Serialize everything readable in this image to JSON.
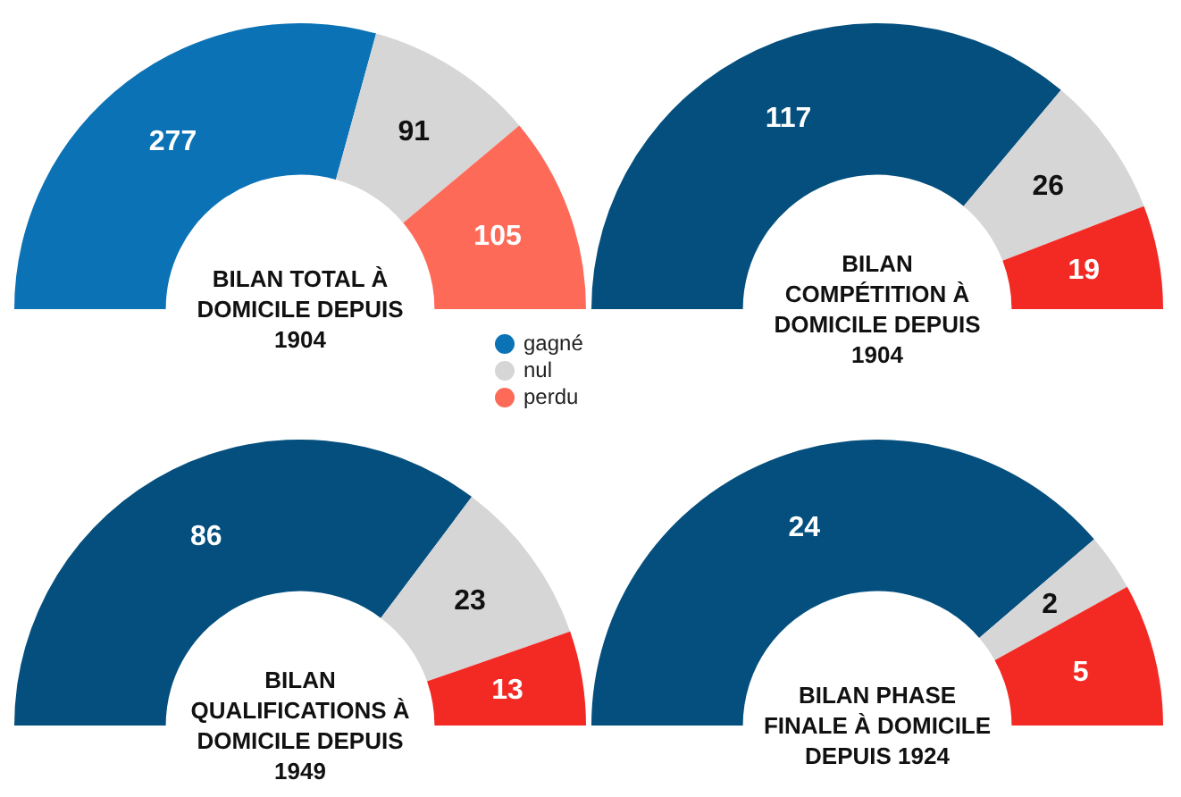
{
  "chart_data": [
    {
      "type": "donut",
      "title": "BILAN TOTAL À DOMICILE DEPUIS 1904",
      "categories": [
        "gagné",
        "nul",
        "perdu"
      ],
      "values": [
        277,
        91,
        105
      ],
      "colors": [
        "#0b72b5",
        "#d6d6d6",
        "#fe6a58"
      ],
      "data_labels": true,
      "legend": "bottom right"
    },
    {
      "type": "donut",
      "title": "BILAN COMPÉTITION À DOMICILE DEPUIS 1904",
      "categories": [
        null,
        null,
        null
      ],
      "values": [
        117,
        26,
        19
      ],
      "colors": [
        "#044f7e",
        "#d6d6d6",
        "#f32a24"
      ],
      "data_labels": true
    },
    {
      "type": "donut",
      "title": "BILAN QUALIFICATIONS À DOMICILE DEPUIS 1949",
      "categories": [
        null,
        null,
        null
      ],
      "values": [
        86,
        23,
        13
      ],
      "colors": [
        "#044f7e",
        "#d6d6d6",
        "#f32a24"
      ],
      "data_labels": true
    },
    {
      "type": "donut",
      "title": "BILAN PHASE FINALE À DOMICILE DEPUIS 1924",
      "categories": [
        null,
        null,
        null
      ],
      "values": [
        24,
        2,
        5
      ],
      "colors": [
        "#044f7e",
        "#d6d6d6",
        "#f32a24"
      ],
      "data_labels": true
    }
  ]
}
